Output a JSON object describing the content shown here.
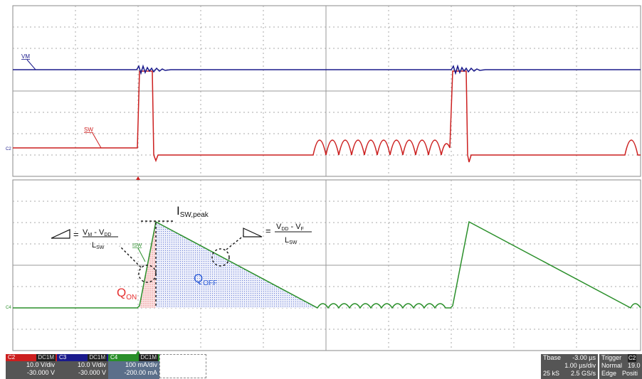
{
  "waveforms": {
    "upper": {
      "vm_label": "VM",
      "sw_label": "SW",
      "sw_marker": "C2"
    },
    "lower": {
      "isw_label": "ISW",
      "marker": "C4"
    }
  },
  "colors": {
    "vm": "#1a1a8c",
    "sw": "#cc1f1f",
    "isw": "#2a8f2a",
    "q_on": "#e53030",
    "q_off": "#2a5ad6"
  },
  "annotations": {
    "i_peak": {
      "main": "I",
      "sub": "SW,peak"
    },
    "q_on": {
      "main": "Q",
      "sub": "ON"
    },
    "q_off": {
      "main": "Q",
      "sub": "OFF"
    },
    "rise_slope": {
      "num_a": "V",
      "num_a_sub": "M",
      "minus": " - V",
      "num_b_sub": "DD",
      "den": "L",
      "den_sub": "SW"
    },
    "fall_slope": {
      "num_a": "V",
      "num_a_sub": "DD",
      "minus": " - V",
      "num_b_sub": "F",
      "den": "L",
      "den_sub": "SW"
    }
  },
  "status_bar": {
    "channels": [
      {
        "name": "C2",
        "coupling": "DC1M",
        "scale": "10.0 V/div",
        "offset": "-30.000 V",
        "color": "#cc1f1f"
      },
      {
        "name": "C3",
        "coupling": "DC1M",
        "scale": "10.0 V/div",
        "offset": "-30.000 V",
        "color": "#1a1a8c"
      },
      {
        "name": "C4",
        "coupling": "DC1M",
        "scale": "100 mA/div",
        "offset": "-200.00 mA",
        "color": "#2a8f2a"
      }
    ],
    "tbase": {
      "label": "Tbase",
      "delay": "-3.00 µs",
      "div": "1.00 µs/div",
      "samples": "25 kS",
      "rate": "2.5 GS/s"
    },
    "trigger": {
      "label": "Trigger",
      "ch": "C2",
      "mode": "Normal",
      "level": "19.0",
      "type": "Edge",
      "slope": "Positi"
    }
  }
}
